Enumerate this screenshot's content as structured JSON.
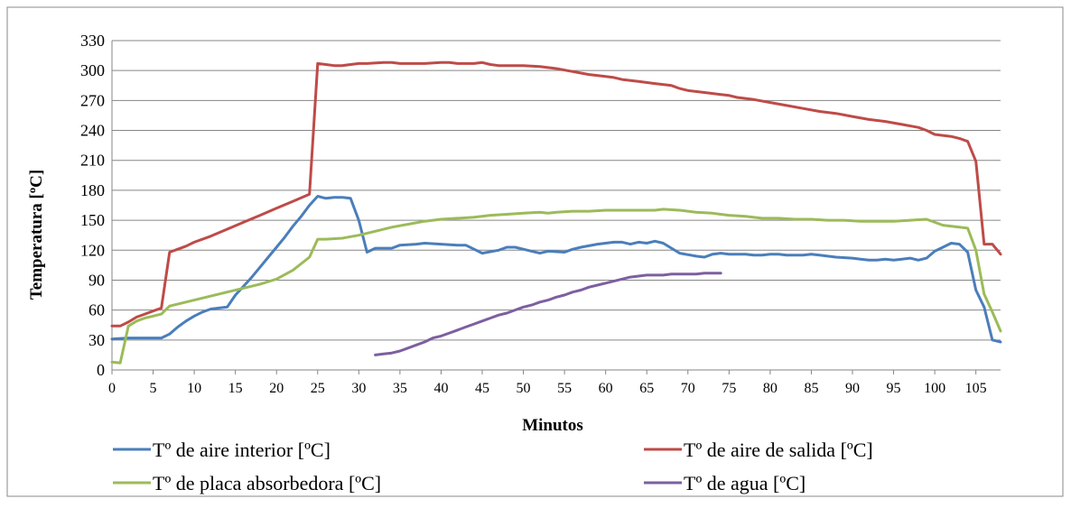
{
  "chart_data": {
    "type": "line",
    "title": "",
    "xlabel": "Minutos",
    "ylabel": "Temperatura [ºC]",
    "xlim": [
      0,
      108
    ],
    "ylim": [
      0,
      330
    ],
    "x_ticks": [
      0,
      5,
      10,
      15,
      20,
      25,
      30,
      35,
      40,
      45,
      50,
      55,
      60,
      65,
      70,
      75,
      80,
      85,
      90,
      95,
      100,
      105
    ],
    "y_ticks": [
      0,
      30,
      60,
      90,
      120,
      150,
      180,
      210,
      240,
      270,
      300,
      330
    ],
    "grid": "horizontal",
    "legend_position": "bottom",
    "series": [
      {
        "name": "Tº de aire interior [ºC]",
        "color": "#4a7ebb",
        "points": [
          [
            0,
            31
          ],
          [
            2,
            32
          ],
          [
            4,
            32
          ],
          [
            6,
            32
          ],
          [
            7,
            36
          ],
          [
            8,
            43
          ],
          [
            9,
            49
          ],
          [
            10,
            54
          ],
          [
            11,
            58
          ],
          [
            12,
            61
          ],
          [
            13,
            62
          ],
          [
            14,
            63
          ],
          [
            15,
            75
          ],
          [
            16,
            84
          ],
          [
            17,
            93
          ],
          [
            18,
            103
          ],
          [
            19,
            113
          ],
          [
            20,
            123
          ],
          [
            21,
            133
          ],
          [
            22,
            144
          ],
          [
            23,
            154
          ],
          [
            24,
            165
          ],
          [
            25,
            174
          ],
          [
            26,
            172
          ],
          [
            27,
            173
          ],
          [
            28,
            173
          ],
          [
            29,
            172
          ],
          [
            30,
            150
          ],
          [
            31,
            118
          ],
          [
            32,
            122
          ],
          [
            34,
            122
          ],
          [
            35,
            125
          ],
          [
            37,
            126
          ],
          [
            38,
            127
          ],
          [
            40,
            126
          ],
          [
            42,
            125
          ],
          [
            43,
            125
          ],
          [
            45,
            117
          ],
          [
            47,
            120
          ],
          [
            48,
            123
          ],
          [
            49,
            123
          ],
          [
            50,
            121
          ],
          [
            51,
            119
          ],
          [
            52,
            117
          ],
          [
            53,
            119
          ],
          [
            55,
            118
          ],
          [
            56,
            121
          ],
          [
            57,
            123
          ],
          [
            59,
            126
          ],
          [
            60,
            127
          ],
          [
            61,
            128
          ],
          [
            62,
            128
          ],
          [
            63,
            126
          ],
          [
            64,
            128
          ],
          [
            65,
            127
          ],
          [
            66,
            129
          ],
          [
            67,
            127
          ],
          [
            68,
            122
          ],
          [
            69,
            117
          ],
          [
            71,
            114
          ],
          [
            72,
            113
          ],
          [
            73,
            116
          ],
          [
            74,
            117
          ],
          [
            75,
            116
          ],
          [
            77,
            116
          ],
          [
            78,
            115
          ],
          [
            79,
            115
          ],
          [
            80,
            116
          ],
          [
            81,
            116
          ],
          [
            82,
            115
          ],
          [
            84,
            115
          ],
          [
            85,
            116
          ],
          [
            86,
            115
          ],
          [
            87,
            114
          ],
          [
            88,
            113
          ],
          [
            90,
            112
          ],
          [
            91,
            111
          ],
          [
            92,
            110
          ],
          [
            93,
            110
          ],
          [
            94,
            111
          ],
          [
            95,
            110
          ],
          [
            96,
            111
          ],
          [
            97,
            112
          ],
          [
            98,
            110
          ],
          [
            99,
            112
          ],
          [
            100,
            119
          ],
          [
            101,
            123
          ],
          [
            102,
            127
          ],
          [
            103,
            126
          ],
          [
            104,
            118
          ],
          [
            105,
            80
          ],
          [
            106,
            63
          ],
          [
            107,
            30
          ],
          [
            108,
            28
          ]
        ]
      },
      {
        "name": "Tº de aire de salida [ºC]",
        "color": "#be4b48",
        "points": [
          [
            0,
            44
          ],
          [
            1,
            44
          ],
          [
            2,
            48
          ],
          [
            3,
            53
          ],
          [
            4,
            56
          ],
          [
            5,
            59
          ],
          [
            6,
            62
          ],
          [
            7,
            118
          ],
          [
            8,
            121
          ],
          [
            9,
            124
          ],
          [
            10,
            128
          ],
          [
            12,
            134
          ],
          [
            14,
            141
          ],
          [
            16,
            148
          ],
          [
            18,
            155
          ],
          [
            20,
            162
          ],
          [
            22,
            169
          ],
          [
            24,
            176
          ],
          [
            25,
            307
          ],
          [
            26,
            306
          ],
          [
            27,
            305
          ],
          [
            28,
            305
          ],
          [
            29,
            306
          ],
          [
            30,
            307
          ],
          [
            31,
            307
          ],
          [
            33,
            308
          ],
          [
            34,
            308
          ],
          [
            35,
            307
          ],
          [
            37,
            307
          ],
          [
            38,
            307
          ],
          [
            40,
            308
          ],
          [
            41,
            308
          ],
          [
            42,
            307
          ],
          [
            43,
            307
          ],
          [
            44,
            307
          ],
          [
            45,
            308
          ],
          [
            46,
            306
          ],
          [
            47,
            305
          ],
          [
            48,
            305
          ],
          [
            50,
            305
          ],
          [
            52,
            304
          ],
          [
            54,
            302
          ],
          [
            56,
            299
          ],
          [
            58,
            296
          ],
          [
            60,
            294
          ],
          [
            61,
            293
          ],
          [
            62,
            291
          ],
          [
            64,
            289
          ],
          [
            66,
            287
          ],
          [
            68,
            285
          ],
          [
            69,
            282
          ],
          [
            70,
            280
          ],
          [
            72,
            278
          ],
          [
            74,
            276
          ],
          [
            75,
            275
          ],
          [
            76,
            273
          ],
          [
            78,
            271
          ],
          [
            80,
            268
          ],
          [
            82,
            265
          ],
          [
            84,
            262
          ],
          [
            86,
            259
          ],
          [
            88,
            257
          ],
          [
            90,
            254
          ],
          [
            92,
            251
          ],
          [
            94,
            249
          ],
          [
            96,
            246
          ],
          [
            98,
            243
          ],
          [
            99,
            240
          ],
          [
            100,
            236
          ],
          [
            102,
            234
          ],
          [
            103,
            232
          ],
          [
            104,
            229
          ],
          [
            105,
            209
          ],
          [
            106,
            126
          ],
          [
            107,
            126
          ],
          [
            108,
            116
          ]
        ]
      },
      {
        "name": "Tº de placa absorbedora [ºC]",
        "color": "#9bbb59",
        "points": [
          [
            0,
            8
          ],
          [
            1,
            7
          ],
          [
            2,
            44
          ],
          [
            3,
            49
          ],
          [
            4,
            52
          ],
          [
            5,
            54
          ],
          [
            6,
            56
          ],
          [
            7,
            64
          ],
          [
            10,
            70
          ],
          [
            14,
            78
          ],
          [
            18,
            86
          ],
          [
            20,
            91
          ],
          [
            22,
            100
          ],
          [
            24,
            113
          ],
          [
            25,
            131
          ],
          [
            26,
            131
          ],
          [
            28,
            132
          ],
          [
            30,
            135
          ],
          [
            32,
            139
          ],
          [
            34,
            143
          ],
          [
            36,
            146
          ],
          [
            38,
            149
          ],
          [
            40,
            151
          ],
          [
            42,
            152
          ],
          [
            44,
            153
          ],
          [
            46,
            155
          ],
          [
            48,
            156
          ],
          [
            50,
            157
          ],
          [
            52,
            158
          ],
          [
            53,
            157
          ],
          [
            54,
            158
          ],
          [
            56,
            159
          ],
          [
            58,
            159
          ],
          [
            60,
            160
          ],
          [
            62,
            160
          ],
          [
            64,
            160
          ],
          [
            66,
            160
          ],
          [
            67,
            161
          ],
          [
            69,
            160
          ],
          [
            71,
            158
          ],
          [
            73,
            157
          ],
          [
            74,
            156
          ],
          [
            75,
            155
          ],
          [
            77,
            154
          ],
          [
            79,
            152
          ],
          [
            81,
            152
          ],
          [
            83,
            151
          ],
          [
            85,
            151
          ],
          [
            87,
            150
          ],
          [
            89,
            150
          ],
          [
            91,
            149
          ],
          [
            93,
            149
          ],
          [
            95,
            149
          ],
          [
            97,
            150
          ],
          [
            99,
            151
          ],
          [
            101,
            145
          ],
          [
            103,
            143
          ],
          [
            104,
            142
          ],
          [
            105,
            120
          ],
          [
            106,
            76
          ],
          [
            107,
            58
          ],
          [
            108,
            39
          ]
        ]
      },
      {
        "name": "Tº de agua [ºC]",
        "color": "#7d5fa0",
        "points": [
          [
            32,
            15
          ],
          [
            33,
            16
          ],
          [
            34,
            17
          ],
          [
            35,
            19
          ],
          [
            36,
            22
          ],
          [
            37,
            25
          ],
          [
            38,
            28
          ],
          [
            39,
            32
          ],
          [
            40,
            34
          ],
          [
            41,
            37
          ],
          [
            42,
            40
          ],
          [
            43,
            43
          ],
          [
            44,
            46
          ],
          [
            45,
            49
          ],
          [
            46,
            52
          ],
          [
            47,
            55
          ],
          [
            48,
            57
          ],
          [
            49,
            60
          ],
          [
            50,
            63
          ],
          [
            51,
            65
          ],
          [
            52,
            68
          ],
          [
            53,
            70
          ],
          [
            54,
            73
          ],
          [
            55,
            75
          ],
          [
            56,
            78
          ],
          [
            57,
            80
          ],
          [
            58,
            83
          ],
          [
            59,
            85
          ],
          [
            60,
            87
          ],
          [
            61,
            89
          ],
          [
            62,
            91
          ],
          [
            63,
            93
          ],
          [
            64,
            94
          ],
          [
            65,
            95
          ],
          [
            66,
            95
          ],
          [
            67,
            95
          ],
          [
            68,
            96
          ],
          [
            69,
            96
          ],
          [
            70,
            96
          ],
          [
            71,
            96
          ],
          [
            72,
            97
          ],
          [
            73,
            97
          ],
          [
            74,
            97
          ]
        ]
      }
    ]
  }
}
